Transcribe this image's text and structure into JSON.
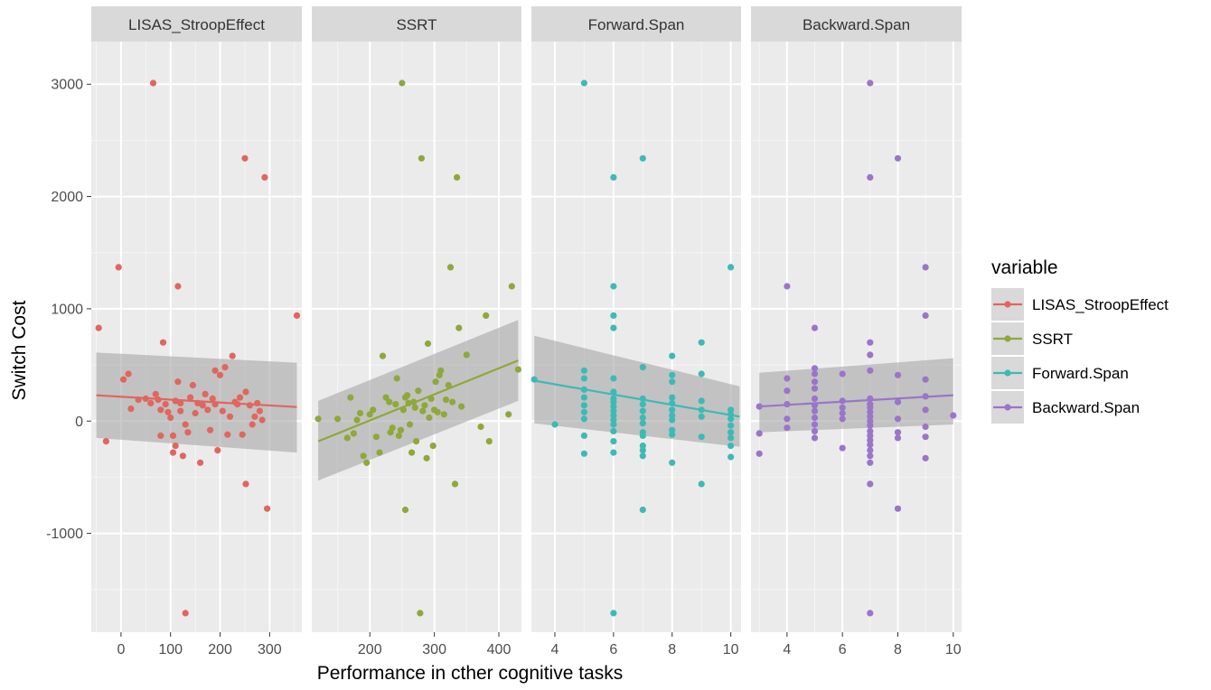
{
  "chart_data": {
    "type": "scatter",
    "xlabel": "Performance in cther cognitive tasks",
    "ylabel": "Switch Cost",
    "ylim": [
      -1880,
      3380
    ],
    "yticks": [
      3000,
      2000,
      1000,
      0,
      -1000
    ],
    "grid": true,
    "legend": {
      "title": "variable",
      "placement": "right",
      "entries": [
        "LISAS_StroopEffect",
        "SSRT",
        "Forward.Span",
        "Backward.Span"
      ]
    },
    "colors": {
      "LISAS_StroopEffect": "#e0665e",
      "SSRT": "#8fa83a",
      "Forward.Span": "#3dbab5",
      "Backward.Span": "#9a75c9",
      "band": "#a6a6a6",
      "panel": "#ebebeb",
      "strip": "#d9d9d9"
    },
    "panels": [
      {
        "name": "LISAS_StroopEffect",
        "xlim": [
          -60,
          365
        ],
        "xticks": [
          0,
          100,
          200,
          300
        ],
        "fit": {
          "x": [
            -50,
            355
          ],
          "y": [
            230,
            125
          ],
          "lo": [
            -150,
            -280
          ],
          "hi": [
            610,
            520
          ]
        },
        "points": [
          [
            -45,
            830
          ],
          [
            -30,
            -180
          ],
          [
            -5,
            1370
          ],
          [
            5,
            370
          ],
          [
            15,
            420
          ],
          [
            20,
            110
          ],
          [
            35,
            190
          ],
          [
            50,
            200
          ],
          [
            60,
            160
          ],
          [
            65,
            3010
          ],
          [
            70,
            240
          ],
          [
            75,
            190
          ],
          [
            80,
            100
          ],
          [
            80,
            -130
          ],
          [
            85,
            700
          ],
          [
            90,
            150
          ],
          [
            95,
            80
          ],
          [
            100,
            30
          ],
          [
            105,
            -130
          ],
          [
            105,
            -280
          ],
          [
            110,
            180
          ],
          [
            110,
            -220
          ],
          [
            115,
            1200
          ],
          [
            115,
            350
          ],
          [
            120,
            160
          ],
          [
            120,
            90
          ],
          [
            125,
            -310
          ],
          [
            130,
            -30
          ],
          [
            130,
            -1710
          ],
          [
            135,
            -100
          ],
          [
            140,
            210
          ],
          [
            145,
            320
          ],
          [
            150,
            70
          ],
          [
            155,
            160
          ],
          [
            160,
            -370
          ],
          [
            165,
            140
          ],
          [
            170,
            240
          ],
          [
            175,
            100
          ],
          [
            180,
            -80
          ],
          [
            185,
            200
          ],
          [
            190,
            150
          ],
          [
            190,
            450
          ],
          [
            195,
            -260
          ],
          [
            200,
            410
          ],
          [
            205,
            90
          ],
          [
            210,
            480
          ],
          [
            215,
            -120
          ],
          [
            220,
            40
          ],
          [
            225,
            580
          ],
          [
            230,
            170
          ],
          [
            235,
            150
          ],
          [
            240,
            210
          ],
          [
            245,
            -120
          ],
          [
            250,
            2340
          ],
          [
            252,
            260
          ],
          [
            252,
            -560
          ],
          [
            260,
            140
          ],
          [
            265,
            -30
          ],
          [
            270,
            40
          ],
          [
            275,
            160
          ],
          [
            280,
            90
          ],
          [
            285,
            10
          ],
          [
            290,
            2170
          ],
          [
            295,
            -780
          ],
          [
            355,
            940
          ]
        ]
      },
      {
        "name": "SSRT",
        "xlim": [
          110,
          435
        ],
        "xticks": [
          200,
          300,
          400
        ],
        "fit": {
          "x": [
            120,
            430
          ],
          "y": [
            -180,
            540
          ],
          "lo": [
            -530,
            180
          ],
          "hi": [
            180,
            900
          ]
        },
        "points": [
          [
            120,
            20
          ],
          [
            150,
            20
          ],
          [
            165,
            -150
          ],
          [
            170,
            210
          ],
          [
            175,
            -110
          ],
          [
            180,
            10
          ],
          [
            185,
            70
          ],
          [
            190,
            -310
          ],
          [
            195,
            -370
          ],
          [
            200,
            60
          ],
          [
            205,
            100
          ],
          [
            210,
            -140
          ],
          [
            215,
            -280
          ],
          [
            220,
            580
          ],
          [
            225,
            210
          ],
          [
            230,
            170
          ],
          [
            232,
            -100
          ],
          [
            235,
            -60
          ],
          [
            240,
            150
          ],
          [
            242,
            380
          ],
          [
            245,
            -130
          ],
          [
            248,
            -80
          ],
          [
            250,
            3010
          ],
          [
            252,
            100
          ],
          [
            255,
            210
          ],
          [
            255,
            -790
          ],
          [
            258,
            230
          ],
          [
            260,
            160
          ],
          [
            262,
            -30
          ],
          [
            265,
            -280
          ],
          [
            268,
            170
          ],
          [
            270,
            120
          ],
          [
            272,
            -180
          ],
          [
            275,
            270
          ],
          [
            278,
            -1710
          ],
          [
            280,
            2340
          ],
          [
            282,
            90
          ],
          [
            285,
            140
          ],
          [
            288,
            -330
          ],
          [
            290,
            690
          ],
          [
            292,
            30
          ],
          [
            295,
            200
          ],
          [
            298,
            -220
          ],
          [
            300,
            100
          ],
          [
            302,
            350
          ],
          [
            305,
            80
          ],
          [
            308,
            410
          ],
          [
            310,
            450
          ],
          [
            315,
            60
          ],
          [
            318,
            190
          ],
          [
            322,
            320
          ],
          [
            325,
            1370
          ],
          [
            328,
            170
          ],
          [
            332,
            -560
          ],
          [
            335,
            2170
          ],
          [
            338,
            830
          ],
          [
            342,
            130
          ],
          [
            350,
            590
          ],
          [
            372,
            -50
          ],
          [
            380,
            940
          ],
          [
            385,
            -180
          ],
          [
            415,
            60
          ],
          [
            420,
            1200
          ],
          [
            430,
            460
          ]
        ]
      },
      {
        "name": "Forward.Span",
        "xlim": [
          3.2,
          10.35
        ],
        "xticks": [
          4,
          6,
          8,
          10
        ],
        "fit": {
          "x": [
            3.3,
            10.3
          ],
          "y": [
            360,
            40
          ],
          "lo": [
            -20,
            -230
          ],
          "hi": [
            760,
            310
          ]
        },
        "points": [
          [
            3.3,
            370
          ],
          [
            4,
            -30
          ],
          [
            5,
            3010
          ],
          [
            5,
            450
          ],
          [
            5,
            380
          ],
          [
            5,
            280
          ],
          [
            5,
            210
          ],
          [
            5,
            140
          ],
          [
            5,
            80
          ],
          [
            5,
            20
          ],
          [
            5,
            -130
          ],
          [
            5,
            -290
          ],
          [
            6,
            2170
          ],
          [
            6,
            1200
          ],
          [
            6,
            940
          ],
          [
            6,
            830
          ],
          [
            6,
            380
          ],
          [
            6,
            260
          ],
          [
            6,
            200
          ],
          [
            6,
            170
          ],
          [
            6,
            130
          ],
          [
            6,
            90
          ],
          [
            6,
            50
          ],
          [
            6,
            10
          ],
          [
            6,
            -30
          ],
          [
            6,
            -90
          ],
          [
            6,
            -180
          ],
          [
            6,
            -280
          ],
          [
            6,
            -1710
          ],
          [
            7,
            2340
          ],
          [
            7,
            480
          ],
          [
            7,
            200
          ],
          [
            7,
            150
          ],
          [
            7,
            90
          ],
          [
            7,
            30
          ],
          [
            7,
            -20
          ],
          [
            7,
            -100
          ],
          [
            7,
            -130
          ],
          [
            7,
            -220
          ],
          [
            7,
            -260
          ],
          [
            7,
            -310
          ],
          [
            7,
            -790
          ],
          [
            8,
            580
          ],
          [
            8,
            410
          ],
          [
            8,
            350
          ],
          [
            8,
            210
          ],
          [
            8,
            160
          ],
          [
            8,
            100
          ],
          [
            8,
            50
          ],
          [
            8,
            10
          ],
          [
            8,
            -80
          ],
          [
            8,
            -120
          ],
          [
            8,
            -370
          ],
          [
            9,
            700
          ],
          [
            9,
            420
          ],
          [
            9,
            180
          ],
          [
            9,
            100
          ],
          [
            9,
            40
          ],
          [
            9,
            -140
          ],
          [
            9,
            -560
          ],
          [
            10,
            1370
          ],
          [
            10,
            100
          ],
          [
            10,
            60
          ],
          [
            10,
            20
          ],
          [
            10,
            -40
          ],
          [
            10,
            -100
          ],
          [
            10,
            -150
          ],
          [
            10,
            -220
          ],
          [
            10,
            -320
          ]
        ]
      },
      {
        "name": "Backward.Span",
        "xlim": [
          2.7,
          10.3
        ],
        "xticks": [
          4,
          6,
          8,
          10
        ],
        "fit": {
          "x": [
            3,
            10
          ],
          "y": [
            130,
            230
          ],
          "lo": [
            -100,
            -30
          ],
          "hi": [
            430,
            560
          ]
        },
        "points": [
          [
            3,
            130
          ],
          [
            3,
            -110
          ],
          [
            3,
            -290
          ],
          [
            4,
            1200
          ],
          [
            4,
            380
          ],
          [
            4,
            270
          ],
          [
            4,
            150
          ],
          [
            4,
            20
          ],
          [
            4,
            -60
          ],
          [
            5,
            830
          ],
          [
            5,
            470
          ],
          [
            5,
            420
          ],
          [
            5,
            350
          ],
          [
            5,
            290
          ],
          [
            5,
            200
          ],
          [
            5,
            140
          ],
          [
            5,
            90
          ],
          [
            5,
            30
          ],
          [
            5,
            -30
          ],
          [
            5,
            -90
          ],
          [
            5,
            -150
          ],
          [
            6,
            420
          ],
          [
            6,
            180
          ],
          [
            6,
            120
          ],
          [
            6,
            70
          ],
          [
            6,
            20
          ],
          [
            6,
            -240
          ],
          [
            7,
            3010
          ],
          [
            7,
            2170
          ],
          [
            7,
            700
          ],
          [
            7,
            590
          ],
          [
            7,
            450
          ],
          [
            7,
            200
          ],
          [
            7,
            150
          ],
          [
            7,
            120
          ],
          [
            7,
            80
          ],
          [
            7,
            40
          ],
          [
            7,
            0
          ],
          [
            7,
            -40
          ],
          [
            7,
            -90
          ],
          [
            7,
            -130
          ],
          [
            7,
            -170
          ],
          [
            7,
            -210
          ],
          [
            7,
            -260
          ],
          [
            7,
            -310
          ],
          [
            7,
            -370
          ],
          [
            7,
            -560
          ],
          [
            7,
            -1710
          ],
          [
            8,
            2340
          ],
          [
            8,
            410
          ],
          [
            8,
            170
          ],
          [
            8,
            20
          ],
          [
            8,
            -100
          ],
          [
            8,
            -150
          ],
          [
            8,
            -780
          ],
          [
            9,
            1370
          ],
          [
            9,
            940
          ],
          [
            9,
            370
          ],
          [
            9,
            220
          ],
          [
            9,
            100
          ],
          [
            9,
            -50
          ],
          [
            9,
            -140
          ],
          [
            9,
            -330
          ],
          [
            10,
            50
          ]
        ]
      }
    ]
  }
}
